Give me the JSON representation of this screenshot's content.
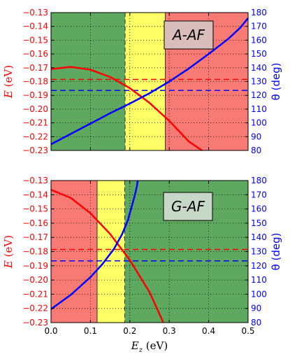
{
  "chart_data": [
    {
      "type": "line",
      "panel_label": "A-AF",
      "ylabel_left": "E",
      "ylabel_left_unit": " (eV)",
      "ylabel_right": "θ (deg)",
      "xlim": [
        0.0,
        0.5
      ],
      "ylim_left": [
        -0.23,
        -0.13
      ],
      "ylim_right": [
        80,
        180
      ],
      "xticks": [
        "0.0",
        "0.1",
        "0.2",
        "0.3",
        "0.4",
        "0.5"
      ],
      "yticks_left": [
        "−0.13",
        "−0.14",
        "−0.15",
        "−0.16",
        "−0.17",
        "−0.18",
        "−0.19",
        "−0.20",
        "−0.21",
        "−0.22",
        "−0.23"
      ],
      "yticks_right": [
        "180",
        "170",
        "160",
        "150",
        "140",
        "130",
        "120",
        "110",
        "100",
        "90",
        "80"
      ],
      "regions": [
        {
          "x": [
            0.0,
            0.188
          ],
          "color": "#5fa85f"
        },
        {
          "x": [
            0.188,
            0.29
          ],
          "color": "#ffff66"
        },
        {
          "x": [
            0.29,
            0.5
          ],
          "color": "#f87a74"
        }
      ],
      "vlines": [
        {
          "x": 0.188,
          "style": "dashed"
        },
        {
          "x": 0.29,
          "style": "solid"
        }
      ],
      "hlines": [
        {
          "y": -0.1785,
          "axis": "left",
          "color": "#ff0000"
        },
        {
          "y": 123.5,
          "axis": "right",
          "color": "#0000ff"
        }
      ],
      "series": [
        {
          "axis": "left",
          "color": "#ff0000",
          "x": [
            0.0,
            0.05,
            0.1,
            0.15,
            0.2,
            0.25,
            0.3,
            0.35,
            0.383
          ],
          "y": [
            -0.171,
            -0.1694,
            -0.1714,
            -0.1767,
            -0.1848,
            -0.1955,
            -0.2085,
            -0.2236,
            -0.23
          ]
        },
        {
          "axis": "right",
          "color": "#0000ff",
          "x": [
            0.0,
            0.05,
            0.1,
            0.15,
            0.2,
            0.25,
            0.3,
            0.35,
            0.4,
            0.45,
            0.48,
            0.5
          ],
          "y": [
            84.5,
            92,
            99.5,
            107,
            114,
            121.5,
            130,
            139.5,
            150,
            161,
            169,
            176
          ]
        }
      ]
    },
    {
      "type": "line",
      "panel_label": "G-AF",
      "ylabel_left": "E",
      "ylabel_left_unit": " (eV)",
      "ylabel_right": "θ (deg)",
      "xlabel": "E",
      "xlabel_sub": "z",
      "xlabel_unit": " (eV)",
      "xlim": [
        0.0,
        0.5
      ],
      "ylim_left": [
        -0.23,
        -0.13
      ],
      "ylim_right": [
        80,
        180
      ],
      "xticks": [
        "0.0",
        "0.1",
        "0.2",
        "0.3",
        "0.4",
        "0.5"
      ],
      "yticks_left": [
        "−0.13",
        "−0.14",
        "−0.15",
        "−0.16",
        "−0.17",
        "−0.18",
        "−0.19",
        "−0.20",
        "−0.21",
        "−0.22",
        "−0.23"
      ],
      "yticks_right": [
        "180",
        "170",
        "160",
        "150",
        "140",
        "130",
        "120",
        "110",
        "100",
        "90",
        "80"
      ],
      "regions": [
        {
          "x": [
            0.0,
            0.117
          ],
          "color": "#f87a74"
        },
        {
          "x": [
            0.117,
            0.187
          ],
          "color": "#ffff66"
        },
        {
          "x": [
            0.187,
            0.5
          ],
          "color": "#5fa85f"
        }
      ],
      "vlines": [
        {
          "x": 0.117,
          "style": "solid"
        },
        {
          "x": 0.187,
          "style": "dashed"
        }
      ],
      "hlines": [
        {
          "y": -0.1785,
          "axis": "left",
          "color": "#ff0000"
        },
        {
          "y": 123.5,
          "axis": "right",
          "color": "#0000ff"
        }
      ],
      "series": [
        {
          "axis": "left",
          "color": "#ff0000",
          "x": [
            0.0,
            0.05,
            0.1,
            0.15,
            0.2,
            0.25,
            0.285
          ],
          "y": [
            -0.1365,
            -0.1422,
            -0.153,
            -0.1676,
            -0.186,
            -0.2085,
            -0.23
          ]
        },
        {
          "axis": "right",
          "color": "#0000ff",
          "x": [
            0.0,
            0.05,
            0.1,
            0.13,
            0.16,
            0.18,
            0.195,
            0.205,
            0.213,
            0.218,
            0.22
          ],
          "y": [
            89.5,
            99.5,
            112,
            121,
            132,
            142,
            152,
            162,
            170,
            176,
            180
          ]
        }
      ]
    }
  ]
}
